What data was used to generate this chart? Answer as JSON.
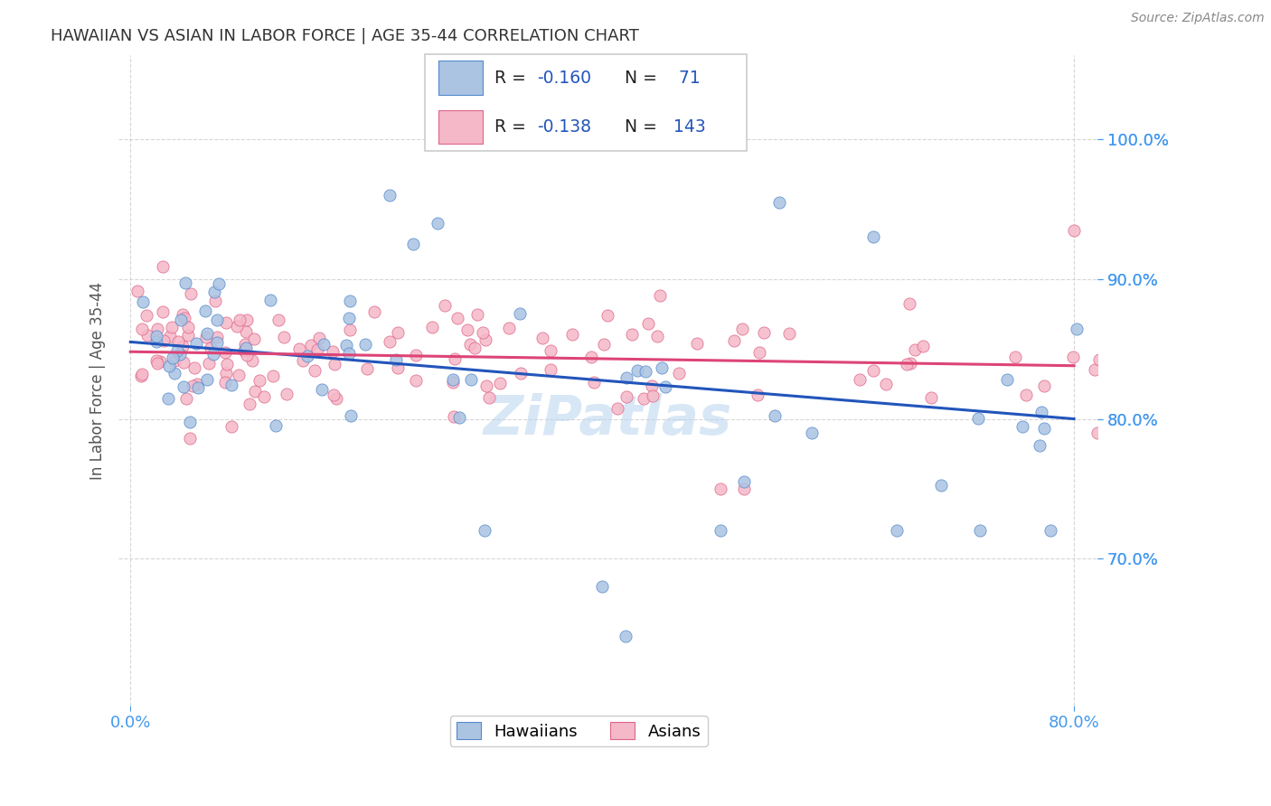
{
  "title": "HAWAIIAN VS ASIAN IN LABOR FORCE | AGE 35-44 CORRELATION CHART",
  "source": "Source: ZipAtlas.com",
  "ylabel": "In Labor Force | Age 35-44",
  "x_tick_vals": [
    0.0,
    0.8
  ],
  "x_tick_labels": [
    "0.0%",
    "80.0%"
  ],
  "y_tick_vals": [
    0.7,
    0.8,
    0.9,
    1.0
  ],
  "y_tick_labels": [
    "70.0%",
    "80.0%",
    "90.0%",
    "100.0%"
  ],
  "xlim": [
    -0.01,
    0.82
  ],
  "ylim": [
    0.595,
    1.06
  ],
  "hawaiian_color": "#aac4e2",
  "asian_color": "#f5b8c8",
  "hawaiian_edge_color": "#5588cc",
  "asian_edge_color": "#dd6688",
  "hawaiian_line_color": "#2255bb",
  "asian_line_color": "#dd4477",
  "hawaiian_R": -0.16,
  "hawaiian_N": 71,
  "asian_R": -0.138,
  "asian_N": 143,
  "watermark": "ZiPatlas",
  "background_color": "#ffffff",
  "grid_color": "#cccccc",
  "tick_color": "#4499ee",
  "legend_blue": "#2255bb",
  "haw_line_y0": 0.855,
  "haw_line_y1": 0.8,
  "asi_line_y0": 0.848,
  "asi_line_y1": 0.838
}
